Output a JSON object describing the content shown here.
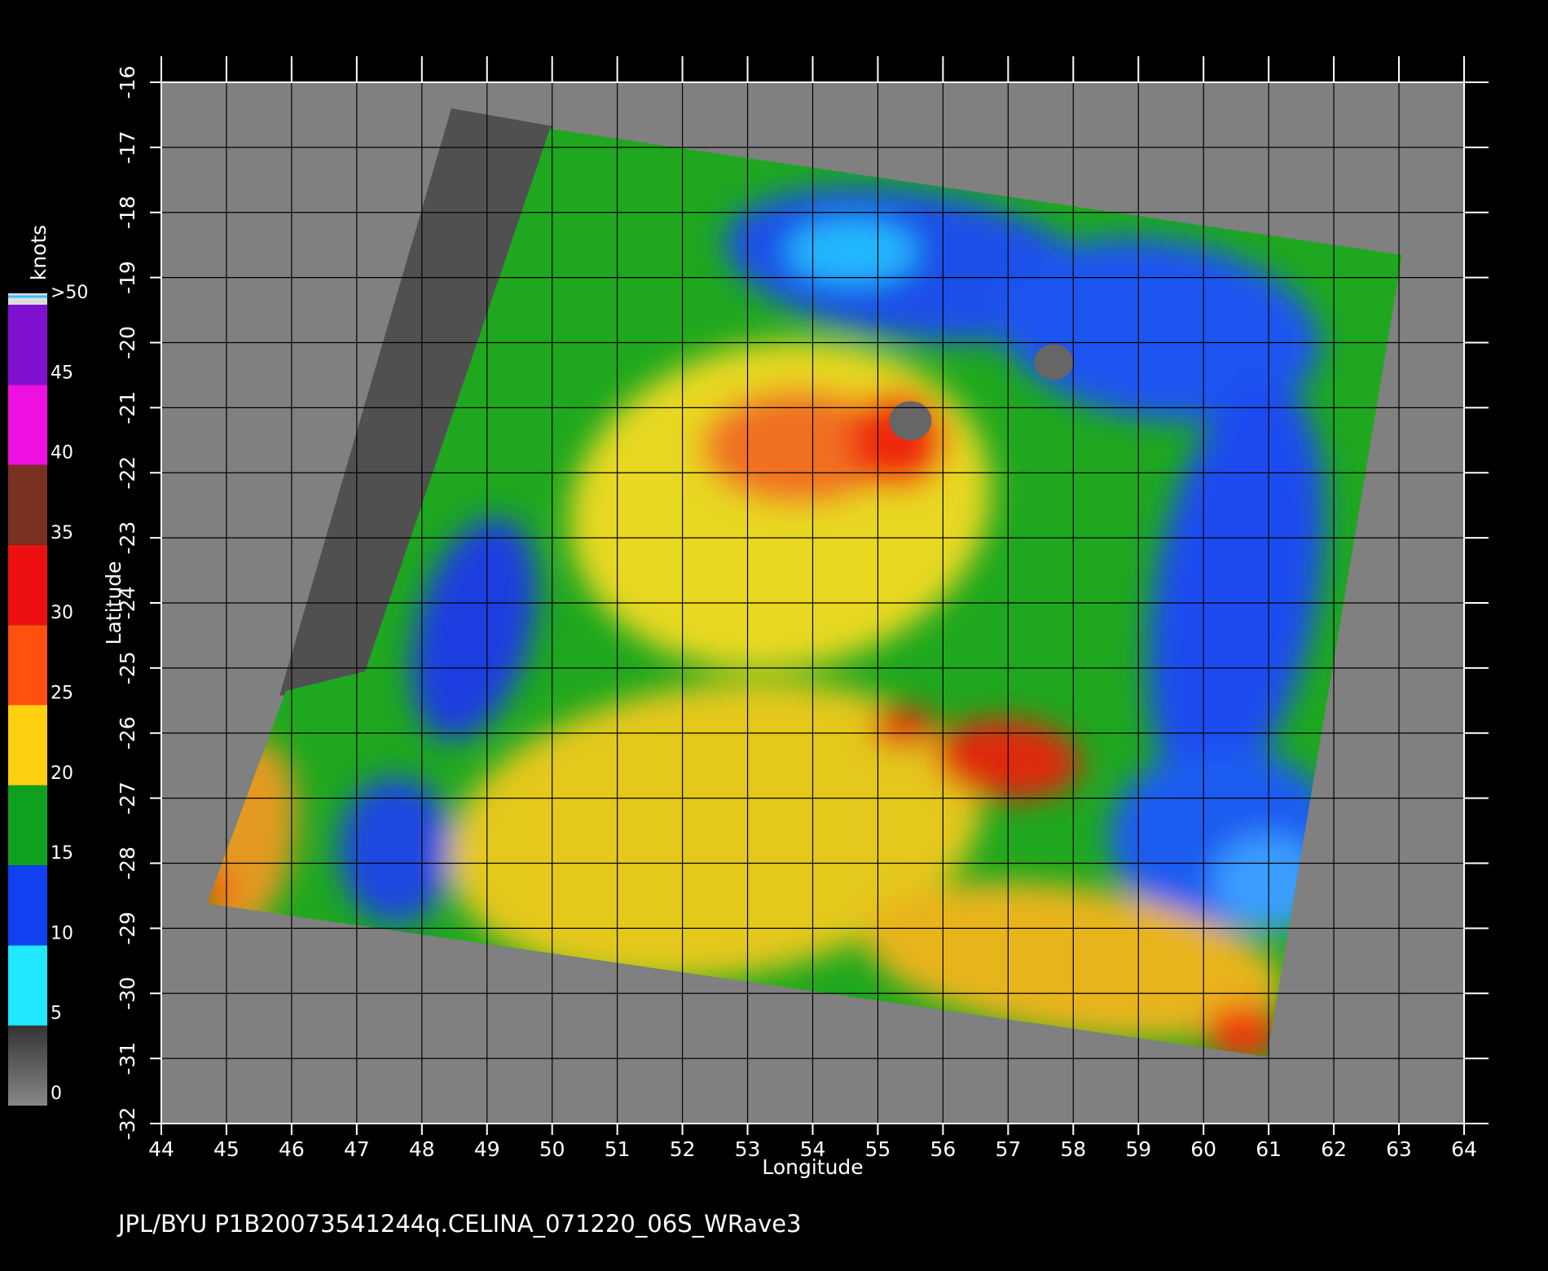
{
  "map": {
    "xlabel": "Longitude",
    "ylabel": "Latitude",
    "xlim": [
      44,
      64
    ],
    "ylim": [
      -32,
      -16
    ],
    "xticks": [
      44,
      45,
      46,
      47,
      48,
      49,
      50,
      51,
      52,
      53,
      54,
      55,
      56,
      57,
      58,
      59,
      60,
      61,
      62,
      63,
      64
    ],
    "yticks": [
      -16,
      -17,
      -18,
      -19,
      -20,
      -21,
      -22,
      -23,
      -24,
      -25,
      -26,
      -27,
      -28,
      -29,
      -30,
      -31,
      -32
    ],
    "colorbar": {
      "title": "knots",
      "ticks": [
        0,
        5,
        10,
        15,
        20,
        25,
        30,
        35,
        40,
        45,
        {
          "value": 50,
          "label": ">50"
        }
      ]
    }
  },
  "footer": "JPL/BYU  P1B20073541244q.CELINA_071220_06S_WRave3"
}
